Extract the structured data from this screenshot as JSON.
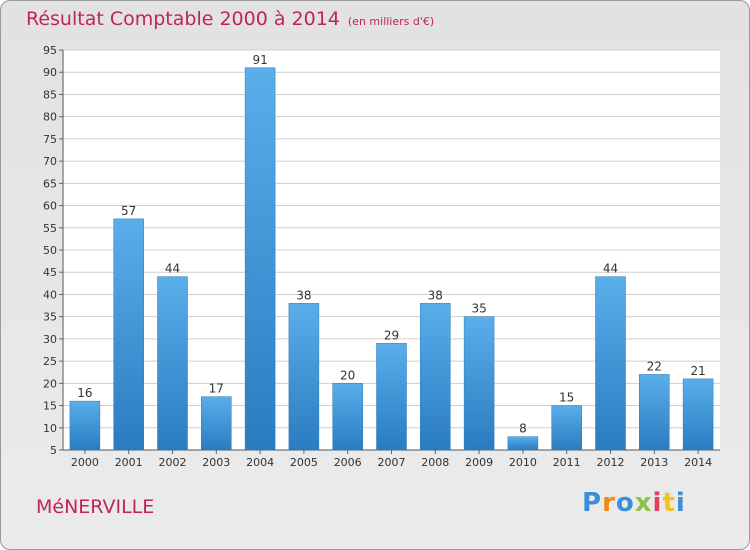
{
  "chart_data": {
    "type": "bar",
    "title": "Résultat Comptable 2000 à 2014",
    "unit": "(en milliers d'€)",
    "categories": [
      "2000",
      "2001",
      "2002",
      "2003",
      "2004",
      "2005",
      "2006",
      "2007",
      "2008",
      "2009",
      "2010",
      "2011",
      "2012",
      "2013",
      "2014"
    ],
    "values": [
      16,
      57,
      44,
      17,
      91,
      38,
      20,
      29,
      38,
      35,
      8,
      15,
      44,
      22,
      21
    ],
    "yticks": [
      5,
      10,
      15,
      20,
      25,
      30,
      35,
      40,
      45,
      50,
      55,
      60,
      65,
      70,
      75,
      80,
      85,
      90,
      95
    ],
    "ylim": [
      5,
      95
    ],
    "grid": true,
    "xlabel": "",
    "ylabel": "",
    "bar_color": "#3d98dc"
  },
  "commune": "MéNERVILLE",
  "logo": {
    "letters": [
      "P",
      "r",
      "o",
      "x",
      "i",
      "t",
      "i"
    ],
    "colors": [
      "#3b8fd6",
      "#f08a1d",
      "#3b8fd6",
      "#8bc34a",
      "#e23e5e",
      "#f7c31b",
      "#3b8fd6"
    ]
  }
}
